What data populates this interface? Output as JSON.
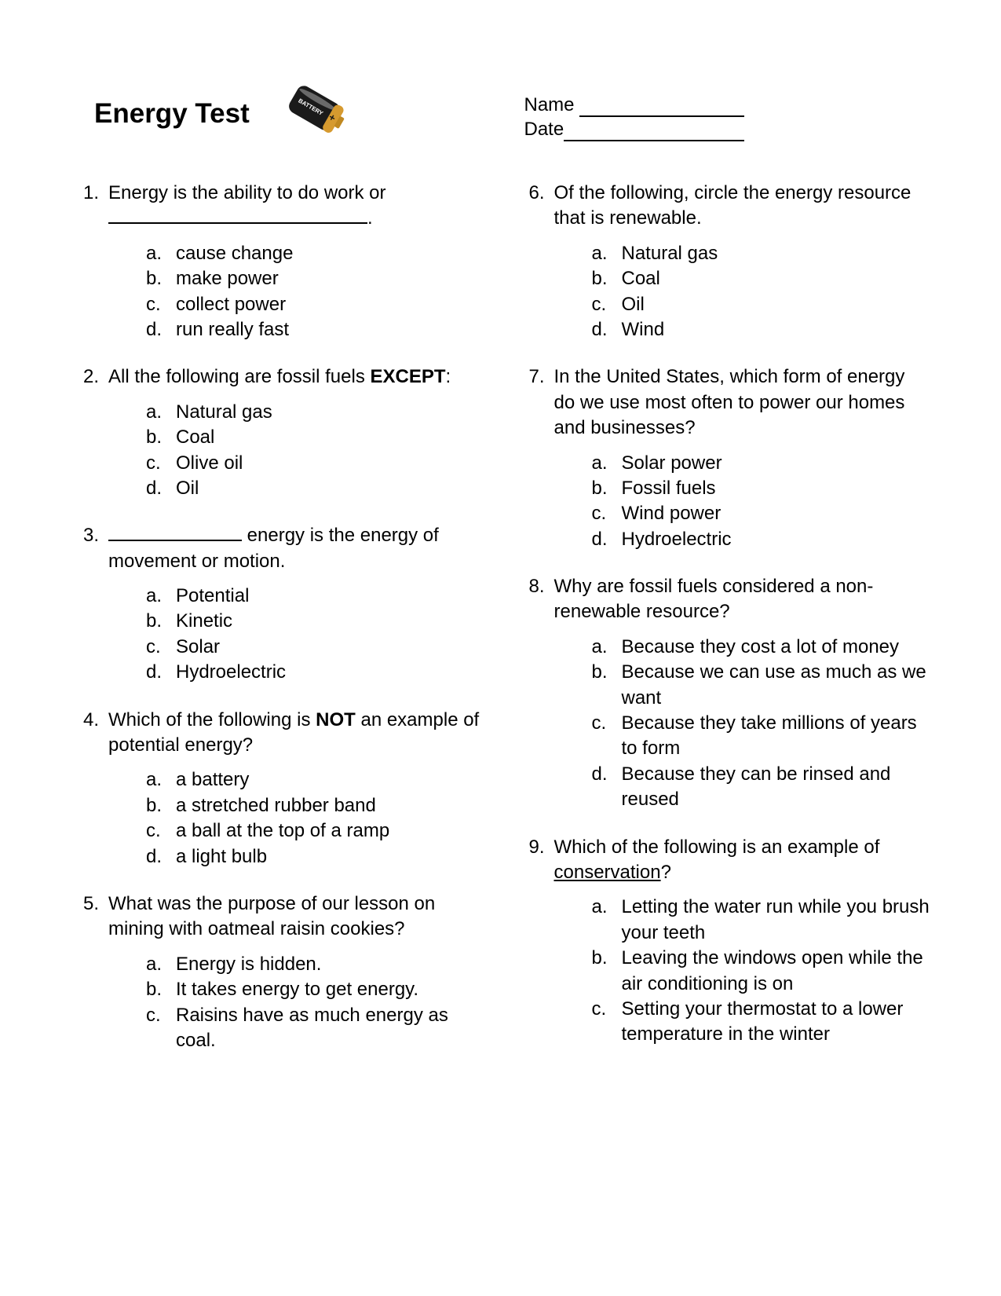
{
  "title": "Energy Test",
  "header": {
    "name_label": "Name",
    "date_label": "Date",
    "name_underline_width": 210,
    "date_underline_width": 230
  },
  "battery": {
    "width": 105,
    "height": 95,
    "label": "BATTERY",
    "body_color": "#1a1a1a",
    "highlight_color": "#ffffff",
    "top_color": "#d69a2f",
    "tip_color": "#c08820",
    "text_color": "#ffffff",
    "rotation_deg": 30
  },
  "typography": {
    "title_fontsize": 35,
    "body_fontsize": 24,
    "font_family": "Verdana"
  },
  "colors": {
    "background": "#ffffff",
    "text": "#000000",
    "underline": "#000000"
  },
  "left_questions": [
    {
      "num": "1.",
      "text_parts": [
        {
          "t": "Energy is the ability to do work or "
        },
        {
          "blank": "long"
        },
        {
          "t": "."
        }
      ],
      "options": [
        {
          "l": "a.",
          "t": "cause change"
        },
        {
          "l": "b.",
          "t": "make power"
        },
        {
          "l": "c.",
          "t": "collect power"
        },
        {
          "l": "d.",
          "t": "run really fast"
        }
      ]
    },
    {
      "num": "2.",
      "text_parts": [
        {
          "t": "All the following are fossil fuels "
        },
        {
          "t": "EXCEPT",
          "bold": true
        },
        {
          "t": ":"
        }
      ],
      "options": [
        {
          "l": "a.",
          "t": "Natural gas"
        },
        {
          "l": "b.",
          "t": "Coal"
        },
        {
          "l": "c.",
          "t": "Olive oil"
        },
        {
          "l": "d.",
          "t": "Oil"
        }
      ]
    },
    {
      "num": "3.",
      "text_parts": [
        {
          "blank": "short"
        },
        {
          "t": " energy is the energy of movement or motion."
        }
      ],
      "options": [
        {
          "l": "a.",
          "t": "Potential"
        },
        {
          "l": "b.",
          "t": "Kinetic"
        },
        {
          "l": "c.",
          "t": "Solar"
        },
        {
          "l": "d.",
          "t": "Hydroelectric"
        }
      ]
    },
    {
      "num": "4.",
      "text_parts": [
        {
          "t": "Which of the following is "
        },
        {
          "t": "NOT",
          "bold": true
        },
        {
          "t": " an example of potential energy?"
        }
      ],
      "options": [
        {
          "l": "a.",
          "t": "a battery"
        },
        {
          "l": "b.",
          "t": "a stretched rubber band"
        },
        {
          "l": "c.",
          "t": "a ball at the top of a ramp"
        },
        {
          "l": "d.",
          "t": "a light bulb"
        }
      ]
    },
    {
      "num": "5.",
      "text_parts": [
        {
          "t": "What was the purpose of our lesson on mining with oatmeal raisin cookies?"
        }
      ],
      "options": [
        {
          "l": "a.",
          "t": "Energy is hidden."
        },
        {
          "l": "b.",
          "t": "It takes energy to get energy."
        },
        {
          "l": "c.",
          "t": "Raisins have as much energy as coal."
        }
      ]
    }
  ],
  "right_questions": [
    {
      "num": "6.",
      "text_parts": [
        {
          "t": "Of the following, circle the energy resource that is renewable."
        }
      ],
      "options": [
        {
          "l": "a.",
          "t": "Natural gas"
        },
        {
          "l": "b.",
          "t": "Coal"
        },
        {
          "l": "c.",
          "t": "Oil"
        },
        {
          "l": "d.",
          "t": "Wind"
        }
      ]
    },
    {
      "num": "7.",
      "text_parts": [
        {
          "t": "In the United States, which form of energy do we use most often to power our homes and businesses?"
        }
      ],
      "options": [
        {
          "l": "a.",
          "t": "Solar power"
        },
        {
          "l": "b.",
          "t": "Fossil fuels"
        },
        {
          "l": "c.",
          "t": "Wind power"
        },
        {
          "l": "d.",
          "t": "Hydroelectric"
        }
      ]
    },
    {
      "num": "8.",
      "text_parts": [
        {
          "t": "Why are fossil fuels considered a non-renewable resource?"
        }
      ],
      "options": [
        {
          "l": "a.",
          "t": "Because they cost a lot of money"
        },
        {
          "l": "b.",
          "t": "Because we can use as much as we want"
        },
        {
          "l": "c.",
          "t": "Because they take millions of years to form"
        },
        {
          "l": "d.",
          "t": "Because they can be rinsed and reused"
        }
      ]
    },
    {
      "num": "9.",
      "text_parts": [
        {
          "t": "Which of the following is an example of "
        },
        {
          "t": "conservation",
          "underline": true
        },
        {
          "t": "?"
        }
      ],
      "options": [
        {
          "l": "a.",
          "t": "Letting the water run while you brush your teeth"
        },
        {
          "l": "b.",
          "t": "Leaving the windows open while the air conditioning is on"
        },
        {
          "l": "c.",
          "t": "Setting your thermostat to a lower temperature in the winter"
        }
      ]
    }
  ]
}
